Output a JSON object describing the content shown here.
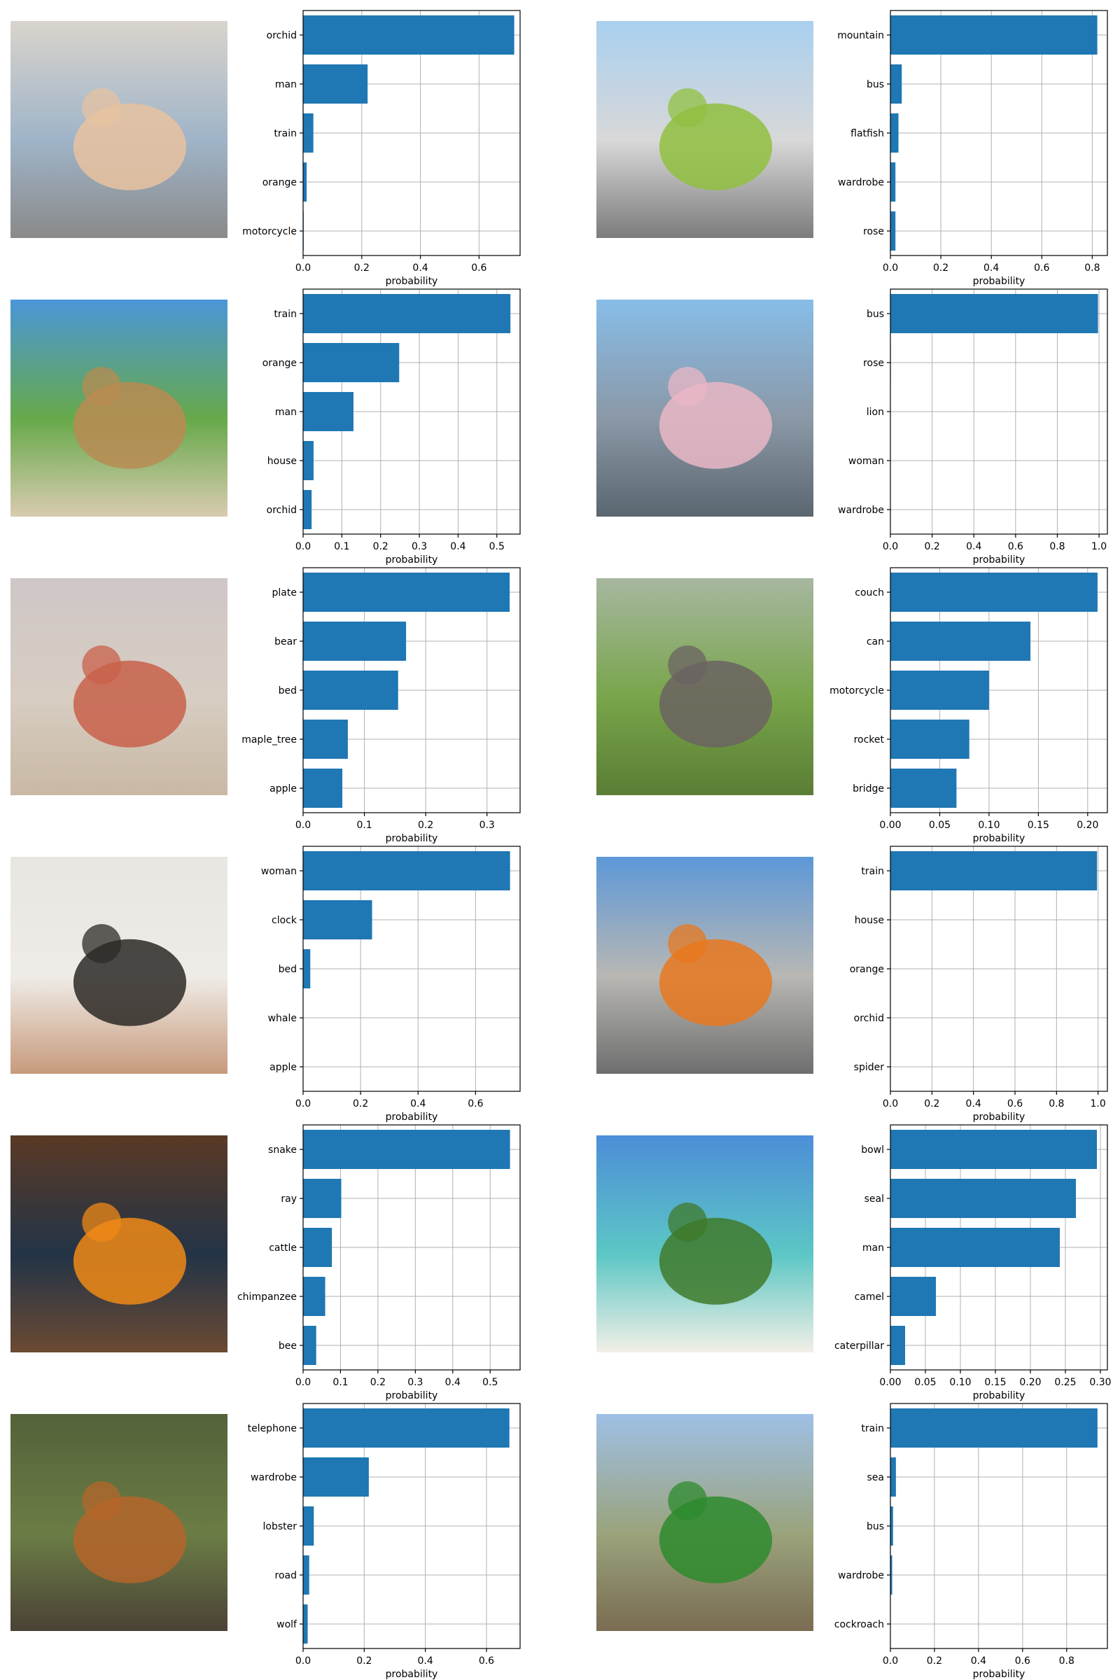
{
  "colors": {
    "bar": "#1f77b4",
    "grid": "#b0b0b0",
    "axis": "#000000"
  },
  "panels": [
    {
      "photo": "photo-cyclist-icon",
      "skin": "#e7c2a0",
      "bg": [
        "#d9d4cc",
        "#9fb4c8",
        "#8a8a8a"
      ]
    },
    {
      "photo": "photo-bus-icon",
      "skin": "#90c040",
      "bg": [
        "#a9d0ef",
        "#d8d8d8",
        "#7c7c7c"
      ]
    },
    {
      "photo": "photo-camel-icon",
      "skin": "#b88b52",
      "bg": [
        "#4a96d8",
        "#67a94a",
        "#d9cbb0"
      ]
    },
    {
      "photo": "photo-castle-icon",
      "skin": "#e9b7c5",
      "bg": [
        "#87bde8",
        "#8b98a6",
        "#5a6670"
      ]
    },
    {
      "photo": "photo-crab-icon",
      "skin": "#c8604a",
      "bg": [
        "#cfc7c7",
        "#d7cdc2",
        "#c9b8a4"
      ]
    },
    {
      "photo": "photo-elephant-icon",
      "skin": "#6b6361",
      "bg": [
        "#a7b7a0",
        "#78a54a",
        "#5a7d35"
      ]
    },
    {
      "photo": "photo-lamp-icon",
      "skin": "#2d2926",
      "bg": [
        "#e8e6e1",
        "#efece7",
        "#c79a7c"
      ]
    },
    {
      "photo": "photo-motorcycle-icon",
      "skin": "#e8781e",
      "bg": [
        "#5d98d8",
        "#b8b7b3",
        "#6e6e6e"
      ]
    },
    {
      "photo": "photo-oranges-icon",
      "skin": "#f08a16",
      "bg": [
        "#5a3a25",
        "#233447",
        "#6b4a33"
      ]
    },
    {
      "photo": "photo-beach-icon",
      "skin": "#3f7a2a",
      "bg": [
        "#4d8ed8",
        "#5cc7c5",
        "#f2efe6"
      ]
    },
    {
      "photo": "photo-squirrel-icon",
      "skin": "#b5652a",
      "bg": [
        "#53623a",
        "#6b7d45",
        "#4b4236"
      ]
    },
    {
      "photo": "photo-tractor-icon",
      "skin": "#2e8b2e",
      "bg": [
        "#9fc0e6",
        "#9aa37c",
        "#7a6c52"
      ]
    }
  ],
  "chart_data": [
    {
      "type": "bar",
      "orientation": "horizontal",
      "categories": [
        "orchid",
        "man",
        "train",
        "orange",
        "motorcycle"
      ],
      "values": [
        0.72,
        0.22,
        0.035,
        0.012,
        0.002
      ],
      "xlim": [
        0,
        0.74
      ],
      "xticks": [
        "0.0",
        "0.2",
        "0.4",
        "0.6"
      ],
      "xtick_values": [
        0,
        0.2,
        0.4,
        0.6
      ],
      "xlabel": "probability",
      "grid": true
    },
    {
      "type": "bar",
      "orientation": "horizontal",
      "categories": [
        "mountain",
        "bus",
        "flatfish",
        "wardrobe",
        "rose"
      ],
      "values": [
        0.82,
        0.045,
        0.032,
        0.02,
        0.02
      ],
      "xlim": [
        0,
        0.86
      ],
      "xticks": [
        "0.0",
        "0.2",
        "0.4",
        "0.6",
        "0.8"
      ],
      "xtick_values": [
        0,
        0.2,
        0.4,
        0.6,
        0.8
      ],
      "xlabel": "probability",
      "grid": true
    },
    {
      "type": "bar",
      "orientation": "horizontal",
      "categories": [
        "train",
        "orange",
        "man",
        "house",
        "orchid"
      ],
      "values": [
        0.535,
        0.248,
        0.13,
        0.027,
        0.022
      ],
      "xlim": [
        0,
        0.56
      ],
      "xticks": [
        "0.0",
        "0.1",
        "0.2",
        "0.3",
        "0.4",
        "0.5"
      ],
      "xtick_values": [
        0,
        0.1,
        0.2,
        0.3,
        0.4,
        0.5
      ],
      "xlabel": "probability",
      "grid": true
    },
    {
      "type": "bar",
      "orientation": "horizontal",
      "categories": [
        "bus",
        "rose",
        "lion",
        "woman",
        "wardrobe"
      ],
      "values": [
        0.995,
        0.002,
        0.001,
        0.001,
        0.001
      ],
      "xlim": [
        0,
        1.04
      ],
      "xticks": [
        "0.0",
        "0.2",
        "0.4",
        "0.6",
        "0.8",
        "1.0"
      ],
      "xtick_values": [
        0,
        0.2,
        0.4,
        0.6,
        0.8,
        1.0
      ],
      "xlabel": "probability",
      "grid": true
    },
    {
      "type": "bar",
      "orientation": "horizontal",
      "categories": [
        "plate",
        "bear",
        "bed",
        "maple_tree",
        "apple"
      ],
      "values": [
        0.337,
        0.168,
        0.155,
        0.073,
        0.064
      ],
      "xlim": [
        0,
        0.354
      ],
      "xticks": [
        "0.0",
        "0.1",
        "0.2",
        "0.3"
      ],
      "xtick_values": [
        0,
        0.1,
        0.2,
        0.3
      ],
      "xlabel": "probability",
      "grid": true
    },
    {
      "type": "bar",
      "orientation": "horizontal",
      "categories": [
        "couch",
        "can",
        "motorcycle",
        "rocket",
        "bridge"
      ],
      "values": [
        0.21,
        0.142,
        0.1,
        0.08,
        0.067
      ],
      "xlim": [
        0,
        0.22
      ],
      "xticks": [
        "0.00",
        "0.05",
        "0.10",
        "0.15",
        "0.20"
      ],
      "xtick_values": [
        0,
        0.05,
        0.1,
        0.15,
        0.2
      ],
      "xlabel": "probability",
      "grid": true
    },
    {
      "type": "bar",
      "orientation": "horizontal",
      "categories": [
        "woman",
        "clock",
        "bed",
        "whale",
        "apple"
      ],
      "values": [
        0.72,
        0.24,
        0.025,
        0.001,
        0.001
      ],
      "xlim": [
        0,
        0.755
      ],
      "xticks": [
        "0.0",
        "0.2",
        "0.4",
        "0.6"
      ],
      "xtick_values": [
        0,
        0.2,
        0.4,
        0.6
      ],
      "xlabel": "probability",
      "grid": true
    },
    {
      "type": "bar",
      "orientation": "horizontal",
      "categories": [
        "train",
        "house",
        "orange",
        "orchid",
        "spider"
      ],
      "values": [
        0.995,
        0.001,
        0.001,
        0.001,
        0.001
      ],
      "xlim": [
        0,
        1.045
      ],
      "xticks": [
        "0.0",
        "0.2",
        "0.4",
        "0.6",
        "0.8",
        "1.0"
      ],
      "xtick_values": [
        0,
        0.2,
        0.4,
        0.6,
        0.8,
        1.0
      ],
      "xlabel": "probability",
      "grid": true
    },
    {
      "type": "bar",
      "orientation": "horizontal",
      "categories": [
        "snake",
        "ray",
        "cattle",
        "chimpanzee",
        "bee"
      ],
      "values": [
        0.553,
        0.102,
        0.077,
        0.059,
        0.035
      ],
      "xlim": [
        0,
        0.58
      ],
      "xticks": [
        "0.0",
        "0.1",
        "0.2",
        "0.3",
        "0.4",
        "0.5"
      ],
      "xtick_values": [
        0,
        0.1,
        0.2,
        0.3,
        0.4,
        0.5
      ],
      "xlabel": "probability",
      "grid": true
    },
    {
      "type": "bar",
      "orientation": "horizontal",
      "categories": [
        "bowl",
        "seal",
        "man",
        "camel",
        "caterpillar"
      ],
      "values": [
        0.295,
        0.265,
        0.242,
        0.065,
        0.021
      ],
      "xlim": [
        0,
        0.31
      ],
      "xticks": [
        "0.00",
        "0.05",
        "0.10",
        "0.15",
        "0.20",
        "0.25",
        "0.30"
      ],
      "xtick_values": [
        0,
        0.05,
        0.1,
        0.15,
        0.2,
        0.25,
        0.3
      ],
      "xlabel": "probability",
      "grid": true
    },
    {
      "type": "bar",
      "orientation": "horizontal",
      "categories": [
        "telephone",
        "wardrobe",
        "lobster",
        "road",
        "wolf"
      ],
      "values": [
        0.675,
        0.215,
        0.035,
        0.02,
        0.015
      ],
      "xlim": [
        0,
        0.71
      ],
      "xticks": [
        "0.0",
        "0.2",
        "0.4",
        "0.6"
      ],
      "xtick_values": [
        0,
        0.2,
        0.4,
        0.6
      ],
      "xlabel": "probability",
      "grid": true
    },
    {
      "type": "bar",
      "orientation": "horizontal",
      "categories": [
        "train",
        "sea",
        "bus",
        "wardrobe",
        "cockroach"
      ],
      "values": [
        0.94,
        0.025,
        0.012,
        0.008,
        0.001
      ],
      "xlim": [
        0,
        0.985
      ],
      "xticks": [
        "0.0",
        "0.2",
        "0.4",
        "0.6",
        "0.8"
      ],
      "xtick_values": [
        0,
        0.2,
        0.4,
        0.6,
        0.8
      ],
      "xlabel": "probability",
      "grid": true
    }
  ]
}
